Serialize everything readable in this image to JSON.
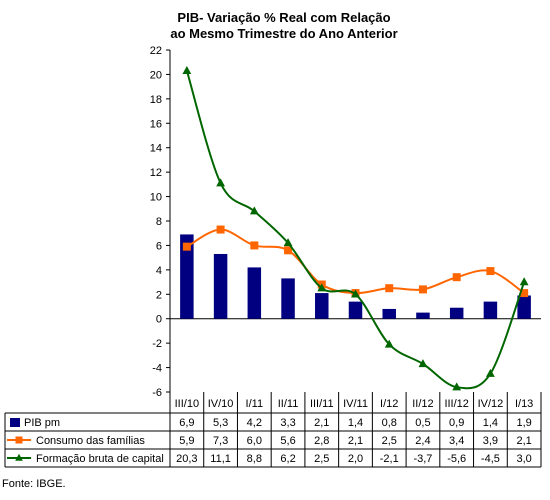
{
  "title_line1": "PIB- Variação % Real com Relação",
  "title_line2": "ao Mesmo Trimestre do Ano Anterior",
  "source": "Fonte: IBGE.",
  "chart_data": {
    "type": "bar",
    "categories": [
      "III/10",
      "IV/10",
      "I/11",
      "II/11",
      "III/11",
      "IV/11",
      "I/12",
      "II/12",
      "III/12",
      "IV/12",
      "I/13"
    ],
    "ylim": [
      -6,
      22
    ],
    "yticks": [
      -6,
      -4,
      -2,
      0,
      2,
      4,
      6,
      8,
      10,
      12,
      14,
      16,
      18,
      20,
      22
    ],
    "legend_placement": "table-below",
    "series": [
      {
        "name": "PIB pm",
        "kind": "bar",
        "color": "#000080",
        "values": [
          6.9,
          5.3,
          4.2,
          3.3,
          2.1,
          1.4,
          0.8,
          0.5,
          0.9,
          1.4,
          1.9
        ],
        "labels": [
          "6,9",
          "5,3",
          "4,2",
          "3,3",
          "2,1",
          "1,4",
          "0,8",
          "0,5",
          "0,9",
          "1,4",
          "1,9"
        ]
      },
      {
        "name": "Consumo das famílias",
        "kind": "line",
        "color": "#FF6600",
        "marker": "square",
        "values": [
          5.9,
          7.3,
          6.0,
          5.6,
          2.8,
          2.1,
          2.5,
          2.4,
          3.4,
          3.9,
          2.1
        ],
        "labels": [
          "5,9",
          "7,3",
          "6,0",
          "5,6",
          "2,8",
          "2,1",
          "2,5",
          "2,4",
          "3,4",
          "3,9",
          "2,1"
        ]
      },
      {
        "name": "Formação bruta de capital",
        "kind": "line",
        "color": "#006600",
        "marker": "triangle",
        "values": [
          20.3,
          11.1,
          8.8,
          6.2,
          2.5,
          2.0,
          -2.1,
          -3.7,
          -5.6,
          -4.5,
          3.0
        ],
        "labels": [
          "20,3",
          "11,1",
          "8,8",
          "6,2",
          "2,5",
          "2,0",
          "-2,1",
          "-3,7",
          "-5,6",
          "-4,5",
          "3,0"
        ]
      }
    ]
  }
}
